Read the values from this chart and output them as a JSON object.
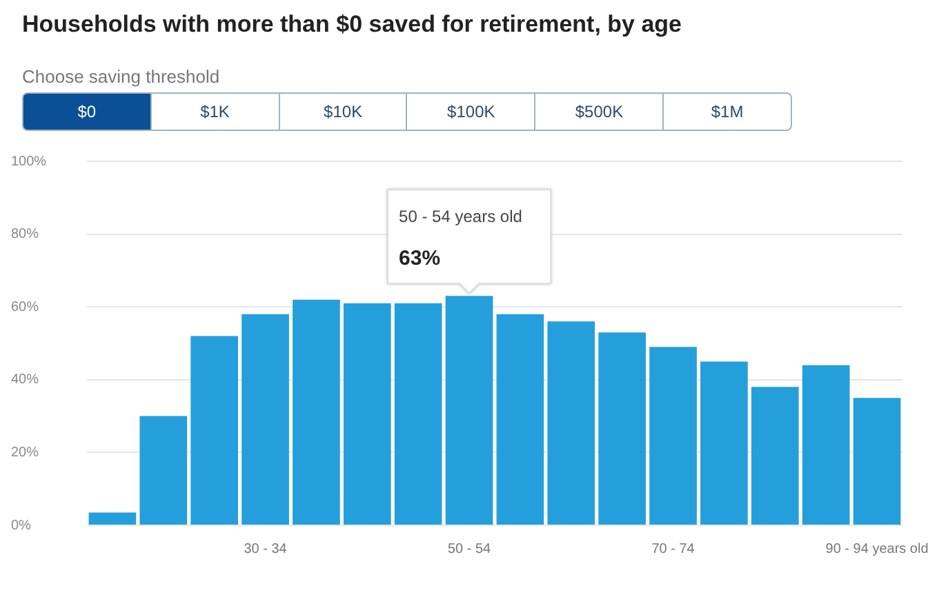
{
  "chart_data": {
    "type": "bar",
    "title": "Households with more than $0 saved for retirement, by age",
    "categories": [
      null,
      null,
      null,
      "30 - 34",
      null,
      null,
      null,
      "50 - 54",
      null,
      null,
      null,
      "70 - 74",
      null,
      null,
      null,
      "90 - 94 years old"
    ],
    "values": [
      3.5,
      30,
      52,
      58,
      62,
      61,
      61,
      63,
      58,
      56,
      53,
      49,
      45,
      38,
      44,
      35
    ],
    "color": "#259fdb",
    "ylim": [
      0,
      100
    ],
    "yticks": [
      {
        "value": 0,
        "label": "0%"
      },
      {
        "value": 20,
        "label": "20%"
      },
      {
        "value": 40,
        "label": "40%"
      },
      {
        "value": 60,
        "label": "60%"
      },
      {
        "value": 80,
        "label": "80%"
      },
      {
        "value": 100,
        "label": "100%"
      }
    ],
    "grid": "y",
    "annotations": [
      "Choose saving threshold",
      "$0",
      "$1K",
      "$10K",
      "$100K",
      "$500K",
      "$1M",
      "50 - 54 years old",
      {
        "text": "63%",
        "x": "50 - 54",
        "y": 63
      }
    ]
  }
}
